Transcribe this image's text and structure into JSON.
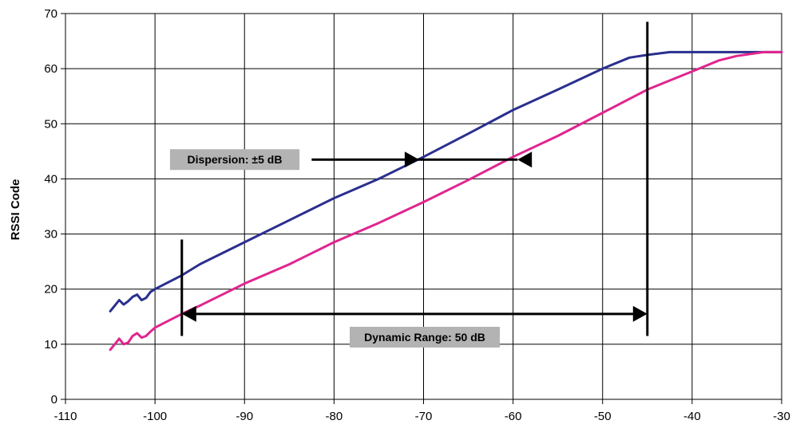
{
  "chart_data": {
    "type": "line",
    "title": "",
    "xlabel": "",
    "ylabel": "RSSI Code",
    "xlim": [
      -110,
      -30
    ],
    "ylim": [
      0,
      70
    ],
    "x_ticks": [
      -110,
      -100,
      -90,
      -80,
      -70,
      -60,
      -50,
      -40,
      -30
    ],
    "y_ticks": [
      0,
      10,
      20,
      30,
      40,
      50,
      60,
      70
    ],
    "grid": true,
    "legend": "none",
    "series": [
      {
        "color": "#2a2f8f",
        "points": [
          [
            -105,
            16
          ],
          [
            -104.5,
            17
          ],
          [
            -104,
            18
          ],
          [
            -103.5,
            17.2
          ],
          [
            -103,
            17.8
          ],
          [
            -102.5,
            18.6
          ],
          [
            -102,
            19
          ],
          [
            -101.5,
            18
          ],
          [
            -101,
            18.4
          ],
          [
            -100.5,
            19.5
          ],
          [
            -100,
            20
          ],
          [
            -97,
            22.5
          ],
          [
            -95,
            24.5
          ],
          [
            -90,
            28.5
          ],
          [
            -85,
            32.5
          ],
          [
            -80,
            36.5
          ],
          [
            -75,
            40
          ],
          [
            -70,
            44
          ],
          [
            -65,
            48.2
          ],
          [
            -60,
            52.5
          ],
          [
            -55,
            56.2
          ],
          [
            -50,
            60
          ],
          [
            -47,
            62
          ],
          [
            -45,
            62.5
          ],
          [
            -42.5,
            63
          ],
          [
            -40,
            63
          ],
          [
            -35,
            63
          ],
          [
            -30,
            63
          ]
        ]
      },
      {
        "color": "#e0258f",
        "points": [
          [
            -105,
            9
          ],
          [
            -104.5,
            10
          ],
          [
            -104,
            11
          ],
          [
            -103.5,
            10
          ],
          [
            -103,
            10.3
          ],
          [
            -102.5,
            11.5
          ],
          [
            -102,
            12
          ],
          [
            -101.5,
            11.2
          ],
          [
            -101,
            11.5
          ],
          [
            -100.5,
            12.3
          ],
          [
            -100,
            13
          ],
          [
            -97,
            15.5
          ],
          [
            -95,
            17
          ],
          [
            -90,
            21
          ],
          [
            -85,
            24.5
          ],
          [
            -80,
            28.5
          ],
          [
            -75,
            32
          ],
          [
            -70,
            35.8
          ],
          [
            -65,
            39.8
          ],
          [
            -60,
            44
          ],
          [
            -55,
            47.8
          ],
          [
            -50,
            52
          ],
          [
            -45,
            56.2
          ],
          [
            -40,
            59.5
          ],
          [
            -37,
            61.5
          ],
          [
            -35,
            62.3
          ],
          [
            -32,
            63
          ],
          [
            -30,
            63
          ]
        ]
      }
    ],
    "annotations": [
      {
        "label": "Dispersion: ±5 dB",
        "arrow_y": 43.5,
        "arrow_x": [
          -70.5,
          -59.5
        ],
        "line_from_x": -82.5
      },
      {
        "label": "Dynamic Range: 50 dB",
        "arrow_y": 15.5,
        "arrow_x": [
          -97,
          -45
        ],
        "bounds_x": [
          -97,
          -45
        ],
        "left_bound_y": [
          11.5,
          29
        ],
        "right_bound_y": [
          11.5,
          68.5
        ]
      }
    ]
  }
}
